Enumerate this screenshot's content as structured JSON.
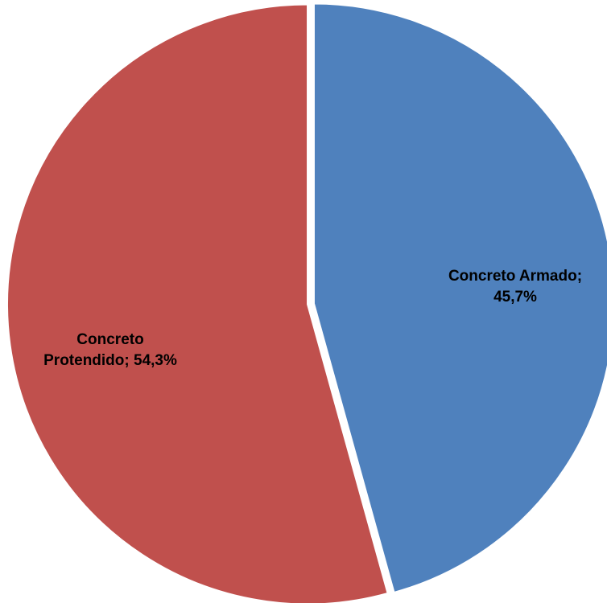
{
  "chart_data": {
    "type": "pie",
    "slices": [
      {
        "name": "Concreto Armado",
        "value": 45.7,
        "color": "#4f81bd",
        "label_lines": [
          "Concreto Armado;",
          "45,7%"
        ]
      },
      {
        "name": "Concreto Protendido",
        "value": 54.3,
        "color": "#c0504d",
        "label_lines": [
          "Concreto",
          "Protendido; 54,3%"
        ]
      }
    ],
    "start_angle": "12 o'clock",
    "direction": "clockwise",
    "legend": "none"
  }
}
